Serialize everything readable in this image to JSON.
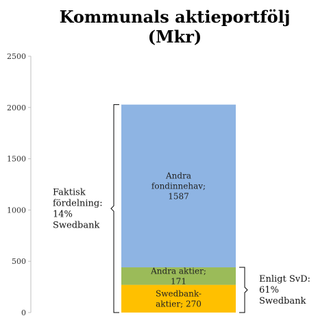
{
  "chart_data": {
    "type": "bar",
    "stacked": true,
    "title_lines": [
      "Kommunals aktieportfölj",
      "(Mkr)"
    ],
    "categories": [
      ""
    ],
    "series": [
      {
        "name": "Swedbank-aktier",
        "label_lines": [
          "Swedbank-",
          "aktier; 270"
        ],
        "value": 270,
        "color": "#ffc000"
      },
      {
        "name": "Andra aktier",
        "label_lines": [
          "Andra aktier;",
          "171"
        ],
        "value": 171,
        "color": "#9bbb59"
      },
      {
        "name": "Andra fondinnehav",
        "label_lines": [
          "Andra",
          "fondinnehav;",
          "1587"
        ],
        "value": 1587,
        "color": "#8eb4e3"
      }
    ],
    "y_ticks": [
      0,
      500,
      1000,
      1500,
      2000,
      2500
    ],
    "ylim": [
      0,
      2500
    ],
    "annotations": [
      {
        "id": "faktisk",
        "lines": [
          "Faktisk",
          "fördelning:",
          "14%",
          "Swedbank"
        ],
        "spans_value": [
          0,
          2028
        ],
        "side": "left"
      },
      {
        "id": "svd",
        "lines": [
          "Enligt SvD:",
          "61%",
          "Swedbank"
        ],
        "spans_value": [
          0,
          441
        ],
        "side": "right"
      }
    ]
  }
}
